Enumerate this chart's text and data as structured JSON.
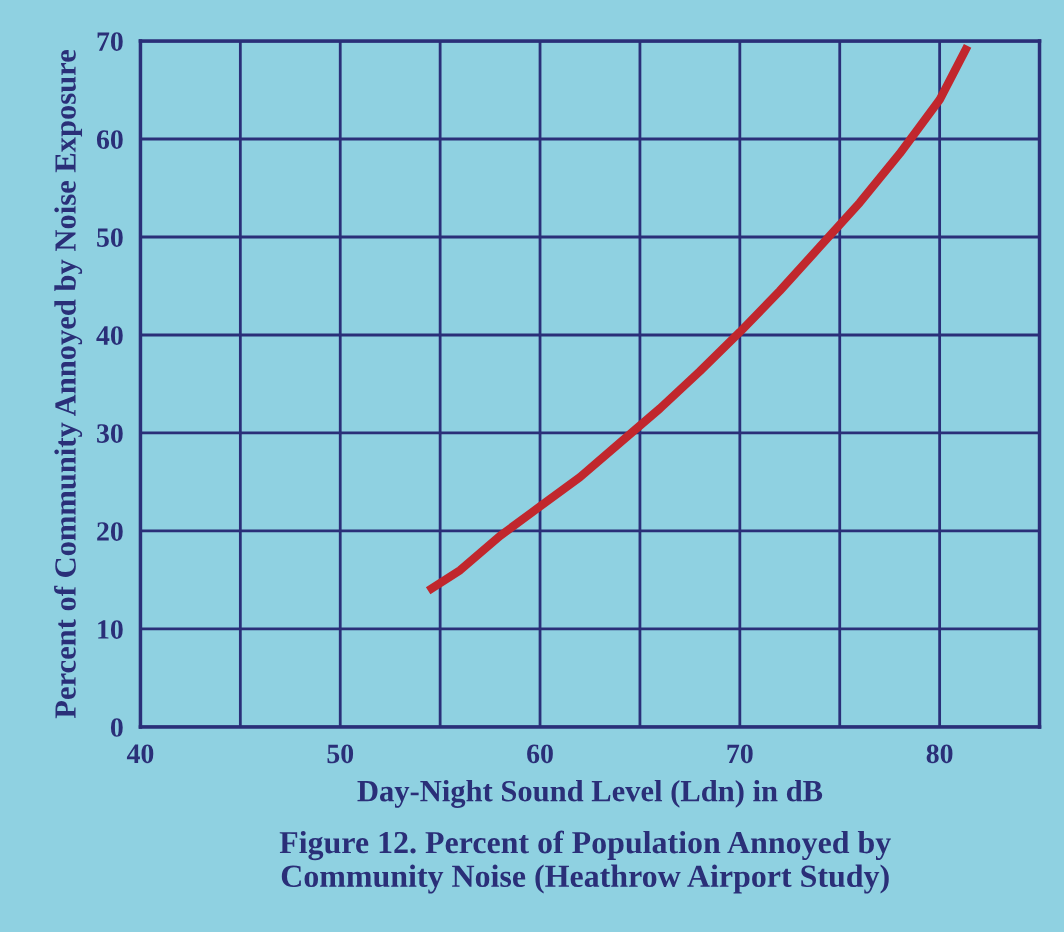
{
  "chart_data": {
    "type": "line",
    "title": "Figure 12. Percent of Population Annoyed by\nCommunity Noise (Heathrow Airport Study)",
    "xlabel": "Day-Night Sound Level (Ldn) in dB",
    "ylabel": "Percent of Community Annoyed by Noise Exposure",
    "x": [
      54.4,
      56,
      58,
      60,
      62,
      64,
      66,
      68,
      70,
      72,
      74,
      76,
      78,
      80,
      81.4
    ],
    "series": [
      {
        "color": "#c1272d",
        "values": [
          13.9,
          16,
          19.5,
          22.5,
          25.5,
          29,
          32.5,
          36.3,
          40.3,
          44.5,
          49,
          53.5,
          58.5,
          64,
          69.5
        ]
      }
    ],
    "xlim": [
      40,
      85
    ],
    "xticks": [
      40,
      {
        "value": 45,
        "label": null
      },
      50,
      {
        "value": 55,
        "label": null
      },
      60,
      {
        "value": 65,
        "label": null
      },
      70,
      {
        "value": 75,
        "label": null
      },
      80,
      {
        "value": 85,
        "label": null
      }
    ],
    "ylim": [
      0,
      70
    ],
    "yticks": [
      0,
      10,
      20,
      30,
      40,
      50,
      60,
      70
    ],
    "grid": true,
    "marker": "none",
    "line_style": "solid"
  }
}
